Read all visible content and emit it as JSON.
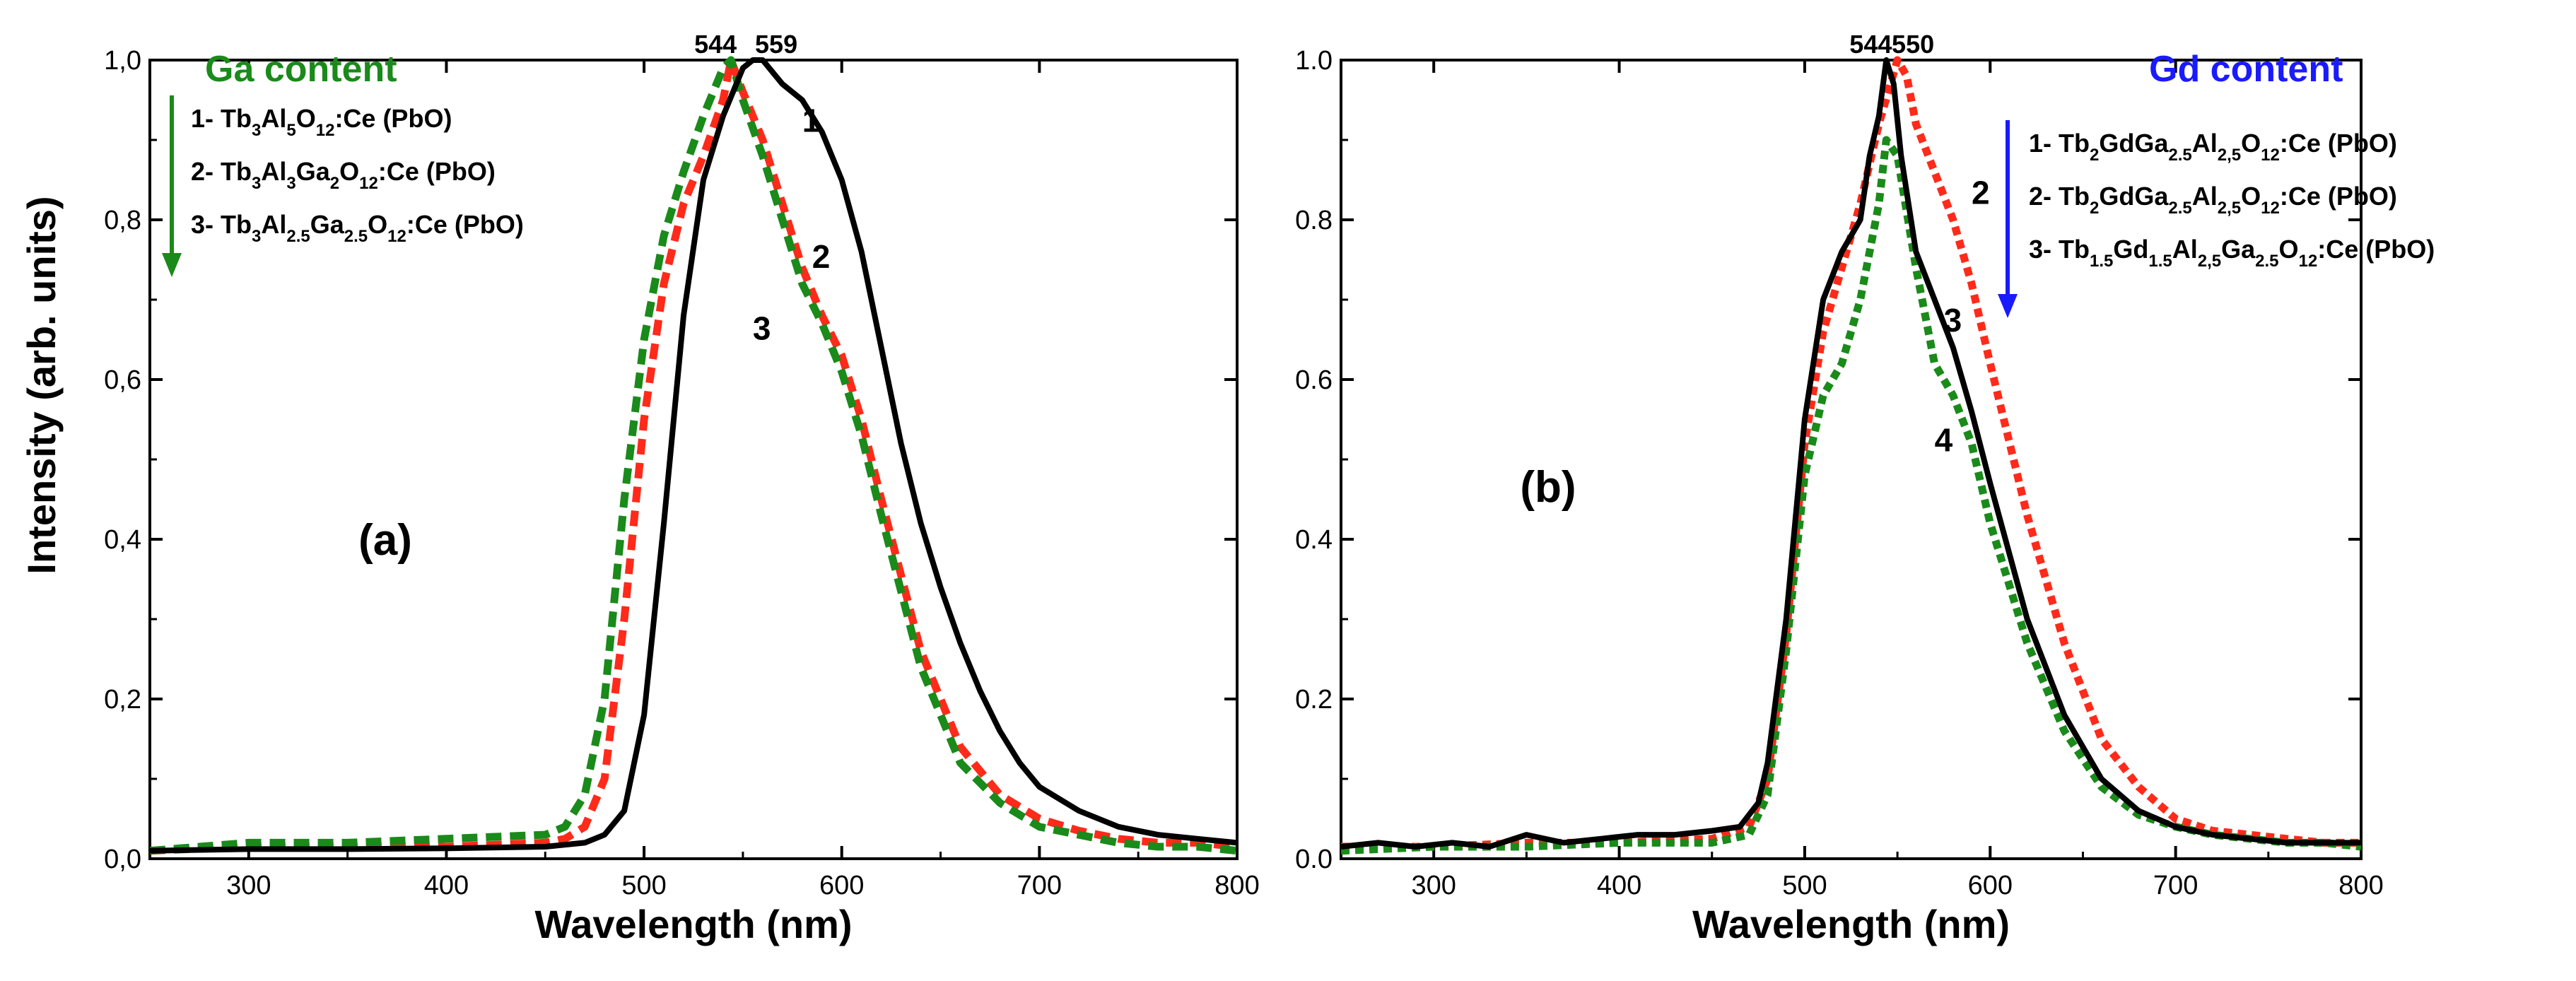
{
  "y_axis_title": "Intensity (arb. units)",
  "chart_data": [
    {
      "type": "line",
      "panel": "(a)",
      "xlabel": "Wavelength (nm)",
      "ylabel": "Intensity (arb. units)",
      "xlim": [
        250,
        800
      ],
      "ylim": [
        0,
        1.0
      ],
      "xticks": [
        300,
        400,
        500,
        600,
        700,
        800
      ],
      "yticks": [
        0,
        0.2,
        0.4,
        0.6,
        0.8,
        1.0
      ],
      "ytick_labels": [
        "0,0",
        "0,2",
        "0,4",
        "0,6",
        "0,8",
        "1,0"
      ],
      "grid": false,
      "legend": {
        "title": "Ga content",
        "title_color": "#1a8a1a",
        "arrow_color": "#1a8a1a",
        "position": "top-left",
        "entries": [
          {
            "prefix": "1- ",
            "formula": [
              [
                "Tb",
                ""
              ],
              [
                "3",
                "sub"
              ],
              [
                "Al",
                ""
              ],
              [
                "5",
                "sub"
              ],
              [
                "O",
                ""
              ],
              [
                "12",
                "sub"
              ]
            ],
            "suffix": ":Ce (PbO)"
          },
          {
            "prefix": "2- ",
            "formula": [
              [
                "Tb",
                ""
              ],
              [
                "3",
                "sub"
              ],
              [
                "Al",
                ""
              ],
              [
                "3",
                "sub"
              ],
              [
                "Ga",
                ""
              ],
              [
                "2",
                "sub"
              ],
              [
                "O",
                ""
              ],
              [
                "12",
                "sub"
              ]
            ],
            "suffix": ":Ce (PbO)"
          },
          {
            "prefix": "3- ",
            "formula": [
              [
                "Tb",
                ""
              ],
              [
                "3",
                "sub"
              ],
              [
                "Al",
                ""
              ],
              [
                "2.5",
                "sub"
              ],
              [
                "Ga",
                ""
              ],
              [
                "2.5",
                "sub"
              ],
              [
                "O",
                ""
              ],
              [
                "12",
                "sub"
              ]
            ],
            "suffix": ":Ce (PbO)"
          }
        ]
      },
      "peak_labels": [
        {
          "text": "544",
          "x": 544
        },
        {
          "text": "559",
          "x": 559
        }
      ],
      "curve_labels": [
        {
          "text": "1",
          "x": 580,
          "y": 0.91
        },
        {
          "text": "2",
          "x": 585,
          "y": 0.74
        },
        {
          "text": "3",
          "x": 555,
          "y": 0.65
        }
      ],
      "series": [
        {
          "name": "1",
          "color": "#000000",
          "dash": "solid",
          "x": [
            250,
            300,
            350,
            400,
            450,
            470,
            480,
            490,
            500,
            510,
            520,
            530,
            540,
            550,
            555,
            560,
            570,
            580,
            590,
            600,
            610,
            620,
            630,
            640,
            650,
            660,
            670,
            680,
            690,
            700,
            720,
            740,
            760,
            780,
            800
          ],
          "y": [
            0.01,
            0.012,
            0.012,
            0.013,
            0.015,
            0.02,
            0.03,
            0.06,
            0.18,
            0.42,
            0.68,
            0.85,
            0.93,
            0.99,
            1.0,
            1.0,
            0.97,
            0.95,
            0.91,
            0.85,
            0.76,
            0.64,
            0.52,
            0.42,
            0.34,
            0.27,
            0.21,
            0.16,
            0.12,
            0.09,
            0.06,
            0.04,
            0.03,
            0.025,
            0.02
          ]
        },
        {
          "name": "2",
          "color": "#ff2a1a",
          "dash": "dash",
          "x": [
            250,
            300,
            350,
            400,
            450,
            460,
            470,
            480,
            490,
            500,
            510,
            520,
            530,
            540,
            544,
            550,
            560,
            570,
            580,
            590,
            600,
            610,
            620,
            640,
            660,
            680,
            700,
            720,
            740,
            760,
            780,
            800
          ],
          "y": [
            0.01,
            0.015,
            0.015,
            0.015,
            0.02,
            0.025,
            0.04,
            0.1,
            0.3,
            0.55,
            0.72,
            0.82,
            0.88,
            0.95,
            1.0,
            0.96,
            0.9,
            0.82,
            0.74,
            0.68,
            0.63,
            0.55,
            0.45,
            0.26,
            0.14,
            0.08,
            0.05,
            0.035,
            0.025,
            0.02,
            0.02,
            0.015
          ]
        },
        {
          "name": "3",
          "color": "#1a8a1a",
          "dash": "dash",
          "x": [
            250,
            300,
            350,
            400,
            450,
            460,
            470,
            480,
            490,
            500,
            510,
            520,
            530,
            540,
            544,
            550,
            560,
            570,
            580,
            590,
            600,
            610,
            620,
            640,
            660,
            680,
            700,
            720,
            740,
            760,
            780,
            800
          ],
          "y": [
            0.01,
            0.02,
            0.02,
            0.025,
            0.03,
            0.04,
            0.08,
            0.2,
            0.45,
            0.65,
            0.78,
            0.86,
            0.93,
            0.99,
            1.0,
            0.95,
            0.88,
            0.8,
            0.72,
            0.67,
            0.61,
            0.53,
            0.43,
            0.24,
            0.12,
            0.07,
            0.04,
            0.03,
            0.02,
            0.015,
            0.015,
            0.01
          ]
        }
      ]
    },
    {
      "type": "line",
      "panel": "(b)",
      "xlabel": "Wavelength (nm)",
      "ylabel": "",
      "xlim": [
        250,
        800
      ],
      "ylim": [
        0,
        1.0
      ],
      "xticks": [
        300,
        400,
        500,
        600,
        700,
        800
      ],
      "yticks": [
        0,
        0.2,
        0.4,
        0.6,
        0.8,
        1.0
      ],
      "ytick_labels": [
        "0.0",
        "0.2",
        "0.4",
        "0.6",
        "0.8",
        "1.0"
      ],
      "grid": false,
      "legend": {
        "title": "Gd content",
        "title_color": "#1a1aff",
        "arrow_color": "#1a1aff",
        "position": "top-right",
        "entries": [
          {
            "prefix": "1- ",
            "formula": [
              [
                "Tb",
                ""
              ],
              [
                "2",
                "sub"
              ],
              [
                "GdGa",
                ""
              ],
              [
                "2.5",
                "sub"
              ],
              [
                "Al",
                ""
              ],
              [
                "2,5",
                "sub"
              ],
              [
                "O",
                ""
              ],
              [
                "12",
                "sub"
              ]
            ],
            "suffix": ":Ce (PbO)"
          },
          {
            "prefix": "2- ",
            "formula": [
              [
                "Tb",
                ""
              ],
              [
                "2",
                "sub"
              ],
              [
                "GdGa",
                ""
              ],
              [
                "2.5",
                "sub"
              ],
              [
                "Al",
                ""
              ],
              [
                "2,5",
                "sub"
              ],
              [
                "O",
                ""
              ],
              [
                "12",
                "sub"
              ]
            ],
            "suffix": ":Ce (PbO)"
          },
          {
            "prefix": "3- ",
            "formula": [
              [
                "Tb",
                ""
              ],
              [
                "1.5",
                "sub"
              ],
              [
                "Gd",
                ""
              ],
              [
                "1.5",
                "sub"
              ],
              [
                "Al",
                ""
              ],
              [
                "2,5",
                "sub"
              ],
              [
                "Ga",
                ""
              ],
              [
                "2.5",
                "sub"
              ],
              [
                "O",
                ""
              ],
              [
                "12",
                "sub"
              ]
            ],
            "suffix": ":Ce (PbO)"
          }
        ]
      },
      "peak_labels": [
        {
          "text": "544",
          "x": 544
        },
        {
          "text": "550",
          "x": 550
        }
      ],
      "curve_labels": [
        {
          "text": "2",
          "x": 590,
          "y": 0.82
        },
        {
          "text": "3",
          "x": 575,
          "y": 0.66
        },
        {
          "text": "4",
          "x": 570,
          "y": 0.51
        }
      ],
      "series": [
        {
          "name": "solid",
          "color": "#000000",
          "dash": "solid",
          "x": [
            250,
            270,
            290,
            310,
            330,
            350,
            370,
            390,
            410,
            430,
            450,
            465,
            475,
            480,
            490,
            500,
            510,
            520,
            530,
            535,
            540,
            544,
            548,
            552,
            560,
            570,
            580,
            590,
            600,
            620,
            640,
            660,
            680,
            700,
            720,
            740,
            760,
            780,
            800
          ],
          "y": [
            0.015,
            0.02,
            0.015,
            0.02,
            0.015,
            0.03,
            0.02,
            0.025,
            0.03,
            0.03,
            0.035,
            0.04,
            0.07,
            0.12,
            0.3,
            0.55,
            0.7,
            0.76,
            0.8,
            0.88,
            0.93,
            1.0,
            0.97,
            0.88,
            0.76,
            0.7,
            0.64,
            0.56,
            0.47,
            0.3,
            0.18,
            0.1,
            0.06,
            0.04,
            0.03,
            0.025,
            0.02,
            0.02,
            0.02
          ]
        },
        {
          "name": "red",
          "color": "#ff2a1a",
          "dash": "dot",
          "x": [
            250,
            300,
            350,
            400,
            450,
            470,
            480,
            490,
            500,
            510,
            520,
            530,
            540,
            550,
            555,
            560,
            570,
            580,
            590,
            600,
            620,
            640,
            660,
            680,
            700,
            720,
            740,
            760,
            780,
            800
          ],
          "y": [
            0.015,
            0.015,
            0.02,
            0.02,
            0.025,
            0.04,
            0.1,
            0.28,
            0.52,
            0.66,
            0.74,
            0.82,
            0.92,
            1.0,
            0.98,
            0.92,
            0.86,
            0.8,
            0.72,
            0.62,
            0.43,
            0.27,
            0.15,
            0.09,
            0.05,
            0.035,
            0.03,
            0.025,
            0.02,
            0.02
          ]
        },
        {
          "name": "green",
          "color": "#1a8a1a",
          "dash": "dot",
          "x": [
            250,
            300,
            350,
            400,
            450,
            470,
            480,
            490,
            500,
            510,
            520,
            530,
            540,
            544,
            550,
            560,
            570,
            580,
            590,
            600,
            620,
            640,
            660,
            680,
            700,
            720,
            740,
            760,
            780,
            800
          ],
          "y": [
            0.01,
            0.015,
            0.015,
            0.02,
            0.02,
            0.03,
            0.08,
            0.26,
            0.48,
            0.58,
            0.62,
            0.7,
            0.82,
            0.9,
            0.88,
            0.74,
            0.62,
            0.58,
            0.52,
            0.42,
            0.27,
            0.16,
            0.09,
            0.055,
            0.04,
            0.03,
            0.025,
            0.02,
            0.02,
            0.015
          ]
        }
      ]
    }
  ]
}
